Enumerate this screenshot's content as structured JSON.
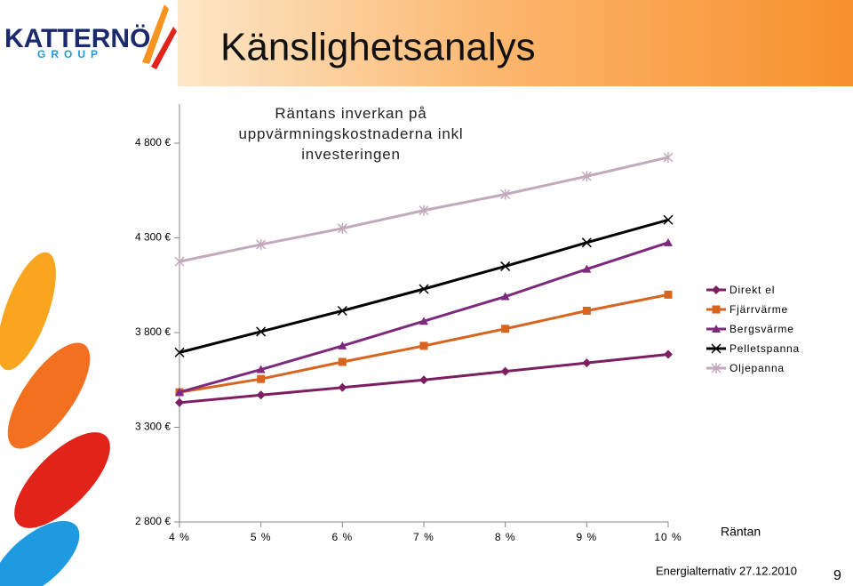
{
  "slide": {
    "title": "Känslighetsanalys",
    "logo": "KATTERNÖ",
    "logo_sub": "GROUP",
    "footer": "Energialternativ 27.12.2010",
    "page": "9"
  },
  "chart_data": {
    "type": "line",
    "title": "Räntans inverkan på uppvärmningskostnaderna inkl investeringen",
    "x_label": "Räntan",
    "categories": [
      "4 %",
      "5 %",
      "6 %",
      "7 %",
      "8 %",
      "9 %",
      "10 %"
    ],
    "ylim": [
      2800,
      4800
    ],
    "yticks": [
      {
        "value": 2800,
        "label": "2 800 €"
      },
      {
        "value": 3300,
        "label": "3 300 €"
      },
      {
        "value": 3800,
        "label": "3 800 €"
      },
      {
        "value": 4300,
        "label": "4 300 €"
      },
      {
        "value": 4800,
        "label": "4 800 €"
      }
    ],
    "grid": false,
    "legend": "right",
    "series": [
      {
        "name": "Direkt el",
        "color": "#7b1f62",
        "marker": "diamond",
        "values": [
          3430,
          3470,
          3510,
          3550,
          3595,
          3640,
          3685
        ]
      },
      {
        "name": "Fjärrvärme",
        "color": "#d8651f",
        "marker": "square",
        "values": [
          3485,
          3555,
          3645,
          3730,
          3820,
          3915,
          4000
        ]
      },
      {
        "name": "Bergsvärme",
        "color": "#7d2a7d",
        "marker": "triangle",
        "values": [
          3485,
          3605,
          3730,
          3860,
          3990,
          4135,
          4275
        ]
      },
      {
        "name": "Pelletspanna",
        "color": "#000000",
        "marker": "x",
        "values": [
          3695,
          3805,
          3915,
          4030,
          4150,
          4275,
          4395
        ]
      },
      {
        "name": "Oljepanna",
        "color": "#c2a9bb",
        "marker": "star",
        "values": [
          4175,
          4265,
          4350,
          4445,
          4530,
          4625,
          4725
        ]
      }
    ]
  }
}
